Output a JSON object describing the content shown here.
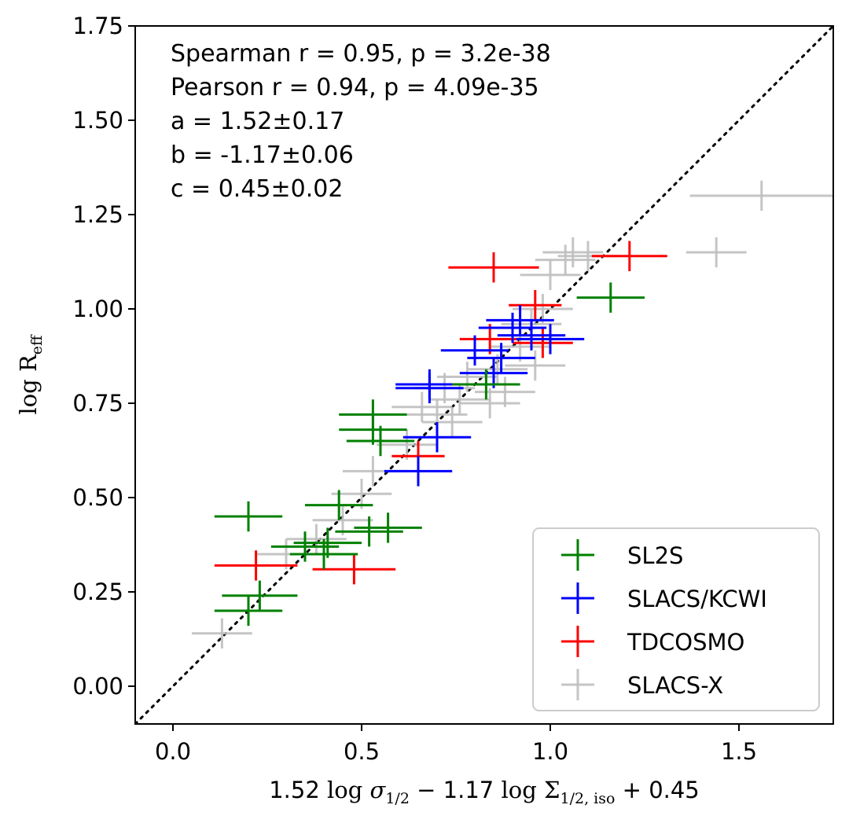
{
  "chart_data": {
    "type": "scatter",
    "xlabel": {
      "coef_a": "1.52",
      "log1": "log",
      "sigma": "σ",
      "sigma_sub": "1/2",
      "minus": "−",
      "coef_b": "1.17",
      "log2": "log",
      "Sigma": "Σ",
      "Sigma_sub": "1/2, iso",
      "plus": "+ 0.45"
    },
    "ylabel": {
      "log": "log",
      "R": "R",
      "R_sub": "eff"
    },
    "xlim": [
      -0.1,
      1.75
    ],
    "ylim": [
      -0.1,
      1.75
    ],
    "x_ticks": [
      0.0,
      0.5,
      1.0,
      1.5
    ],
    "x_tick_labels": [
      "0.0",
      "0.5",
      "1.0",
      "1.5"
    ],
    "y_ticks": [
      0.0,
      0.25,
      0.5,
      0.75,
      1.0,
      1.25,
      1.5,
      1.75
    ],
    "y_tick_labels": [
      "0.00",
      "0.25",
      "0.50",
      "0.75",
      "1.00",
      "1.25",
      "1.50",
      "1.75"
    ],
    "identity_line": true,
    "legend_position": "lower-right",
    "annotations": [
      "Spearman r = 0.95, p = 3.2e-38",
      "Pearson r = 0.94, p = 4.09e-35",
      "a = 1.52±0.17",
      "b = -1.17±0.06",
      "c = 0.45±0.02"
    ],
    "series": [
      {
        "name": "SL2S",
        "color": "#008000",
        "points": [
          {
            "x": 0.2,
            "y": 0.45,
            "xerr": 0.09,
            "yerr": 0.04
          },
          {
            "x": 0.23,
            "y": 0.24,
            "xerr": 0.1,
            "yerr": 0.04
          },
          {
            "x": 0.2,
            "y": 0.2,
            "xerr": 0.09,
            "yerr": 0.04
          },
          {
            "x": 0.35,
            "y": 0.37,
            "xerr": 0.09,
            "yerr": 0.04
          },
          {
            "x": 0.4,
            "y": 0.35,
            "xerr": 0.09,
            "yerr": 0.04
          },
          {
            "x": 0.41,
            "y": 0.38,
            "xerr": 0.09,
            "yerr": 0.04
          },
          {
            "x": 0.44,
            "y": 0.48,
            "xerr": 0.09,
            "yerr": 0.04
          },
          {
            "x": 0.52,
            "y": 0.41,
            "xerr": 0.09,
            "yerr": 0.04
          },
          {
            "x": 0.57,
            "y": 0.42,
            "xerr": 0.09,
            "yerr": 0.04
          },
          {
            "x": 0.53,
            "y": 0.72,
            "xerr": 0.09,
            "yerr": 0.04
          },
          {
            "x": 0.53,
            "y": 0.68,
            "xerr": 0.09,
            "yerr": 0.04
          },
          {
            "x": 0.55,
            "y": 0.65,
            "xerr": 0.09,
            "yerr": 0.04
          },
          {
            "x": 0.83,
            "y": 0.8,
            "xerr": 0.09,
            "yerr": 0.04
          },
          {
            "x": 1.16,
            "y": 1.03,
            "xerr": 0.09,
            "yerr": 0.04
          }
        ]
      },
      {
        "name": "SLACS/KCWI",
        "color": "#0000ff",
        "points": [
          {
            "x": 0.68,
            "y": 0.79,
            "xerr": 0.09,
            "yerr": 0.04
          },
          {
            "x": 0.68,
            "y": 0.8,
            "xerr": 0.09,
            "yerr": 0.04
          },
          {
            "x": 0.7,
            "y": 0.66,
            "xerr": 0.09,
            "yerr": 0.04
          },
          {
            "x": 0.65,
            "y": 0.57,
            "xerr": 0.09,
            "yerr": 0.04
          },
          {
            "x": 0.8,
            "y": 0.89,
            "xerr": 0.09,
            "yerr": 0.04
          },
          {
            "x": 0.85,
            "y": 0.83,
            "xerr": 0.09,
            "yerr": 0.04
          },
          {
            "x": 0.87,
            "y": 0.87,
            "xerr": 0.09,
            "yerr": 0.04
          },
          {
            "x": 0.9,
            "y": 0.95,
            "xerr": 0.09,
            "yerr": 0.04
          },
          {
            "x": 0.92,
            "y": 0.97,
            "xerr": 0.09,
            "yerr": 0.04
          },
          {
            "x": 0.95,
            "y": 0.93,
            "xerr": 0.09,
            "yerr": 0.04
          },
          {
            "x": 1.0,
            "y": 0.92,
            "xerr": 0.09,
            "yerr": 0.04
          }
        ]
      },
      {
        "name": "TDCOSMO",
        "color": "#ff0000",
        "points": [
          {
            "x": 0.22,
            "y": 0.32,
            "xerr": 0.11,
            "yerr": 0.04
          },
          {
            "x": 0.48,
            "y": 0.31,
            "xerr": 0.11,
            "yerr": 0.04
          },
          {
            "x": 0.65,
            "y": 0.61,
            "xerr": 0.07,
            "yerr": 0.04
          },
          {
            "x": 0.85,
            "y": 1.11,
            "xerr": 0.12,
            "yerr": 0.04
          },
          {
            "x": 0.84,
            "y": 0.92,
            "xerr": 0.08,
            "yerr": 0.04
          },
          {
            "x": 0.96,
            "y": 1.01,
            "xerr": 0.07,
            "yerr": 0.04
          },
          {
            "x": 0.98,
            "y": 0.91,
            "xerr": 0.08,
            "yerr": 0.04
          },
          {
            "x": 1.21,
            "y": 1.14,
            "xerr": 0.1,
            "yerr": 0.04
          }
        ]
      },
      {
        "name": "SLACS-X",
        "color": "#bfbfbf",
        "points": [
          {
            "x": 0.13,
            "y": 0.14,
            "xerr": 0.08,
            "yerr": 0.04
          },
          {
            "x": 0.3,
            "y": 0.35,
            "xerr": 0.08,
            "yerr": 0.04
          },
          {
            "x": 0.38,
            "y": 0.39,
            "xerr": 0.08,
            "yerr": 0.04
          },
          {
            "x": 0.45,
            "y": 0.44,
            "xerr": 0.08,
            "yerr": 0.04
          },
          {
            "x": 0.5,
            "y": 0.51,
            "xerr": 0.08,
            "yerr": 0.04
          },
          {
            "x": 0.53,
            "y": 0.57,
            "xerr": 0.08,
            "yerr": 0.04
          },
          {
            "x": 0.62,
            "y": 0.64,
            "xerr": 0.08,
            "yerr": 0.04
          },
          {
            "x": 0.66,
            "y": 0.74,
            "xerr": 0.08,
            "yerr": 0.04
          },
          {
            "x": 0.7,
            "y": 0.72,
            "xerr": 0.08,
            "yerr": 0.04
          },
          {
            "x": 0.72,
            "y": 0.79,
            "xerr": 0.08,
            "yerr": 0.04
          },
          {
            "x": 0.74,
            "y": 0.7,
            "xerr": 0.08,
            "yerr": 0.04
          },
          {
            "x": 0.76,
            "y": 0.76,
            "xerr": 0.08,
            "yerr": 0.04
          },
          {
            "x": 0.78,
            "y": 0.82,
            "xerr": 0.08,
            "yerr": 0.04
          },
          {
            "x": 0.84,
            "y": 0.75,
            "xerr": 0.08,
            "yerr": 0.04
          },
          {
            "x": 0.86,
            "y": 0.84,
            "xerr": 0.08,
            "yerr": 0.04
          },
          {
            "x": 0.88,
            "y": 0.78,
            "xerr": 0.08,
            "yerr": 0.04
          },
          {
            "x": 0.92,
            "y": 0.9,
            "xerr": 0.08,
            "yerr": 0.04
          },
          {
            "x": 0.95,
            "y": 0.96,
            "xerr": 0.08,
            "yerr": 0.04
          },
          {
            "x": 0.96,
            "y": 0.85,
            "xerr": 0.08,
            "yerr": 0.04
          },
          {
            "x": 0.98,
            "y": 1.0,
            "xerr": 0.08,
            "yerr": 0.04
          },
          {
            "x": 1.0,
            "y": 1.09,
            "xerr": 0.08,
            "yerr": 0.04
          },
          {
            "x": 1.04,
            "y": 1.13,
            "xerr": 0.08,
            "yerr": 0.04
          },
          {
            "x": 1.06,
            "y": 1.15,
            "xerr": 0.08,
            "yerr": 0.04
          },
          {
            "x": 1.1,
            "y": 1.14,
            "xerr": 0.08,
            "yerr": 0.04
          },
          {
            "x": 1.44,
            "y": 1.15,
            "xerr": 0.08,
            "yerr": 0.04
          },
          {
            "x": 1.56,
            "y": 1.3,
            "xerr": 0.19,
            "yerr": 0.04
          }
        ]
      }
    ]
  }
}
